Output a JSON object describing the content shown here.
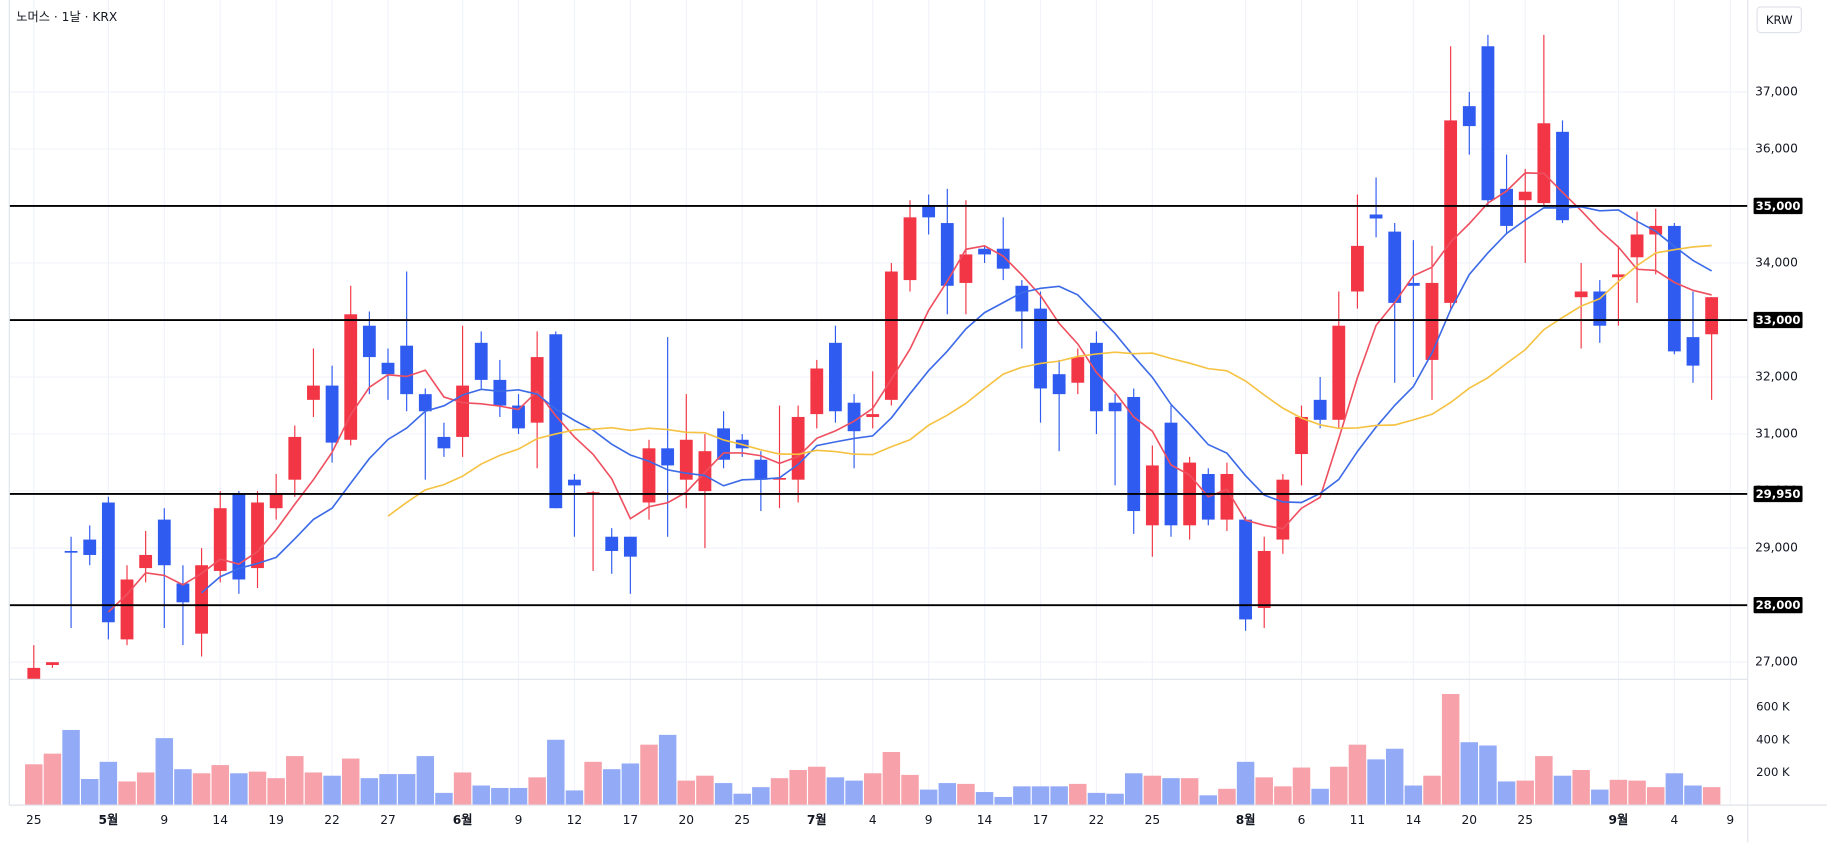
{
  "chart_data": {
    "type": "candlestick",
    "title": "노머스 · 1날 · KRX",
    "currency": "KRW",
    "categories": [
      "25",
      null,
      null,
      null,
      "5월",
      null,
      null,
      "9",
      null,
      null,
      "14",
      null,
      null,
      "19",
      null,
      null,
      "22",
      null,
      null,
      "27",
      null,
      null,
      null,
      "6월",
      null,
      null,
      "9",
      null,
      null,
      "12",
      null,
      null,
      "17",
      null,
      null,
      "20",
      null,
      null,
      "25",
      null,
      null,
      null,
      "7월",
      null,
      null,
      "4",
      null,
      null,
      "9",
      null,
      null,
      "14",
      null,
      null,
      "17",
      null,
      null,
      "22",
      null,
      null,
      "25",
      null,
      null,
      null,
      null,
      "8월",
      null,
      null,
      "6",
      null,
      null,
      "11",
      null,
      null,
      "14",
      null,
      null,
      "20",
      null,
      null,
      "25",
      null,
      null,
      null,
      null,
      "9월",
      null,
      null,
      "4",
      null,
      null,
      "9"
    ],
    "open": [
      26700,
      26950,
      28950,
      29150,
      29800,
      27400,
      28650,
      29500,
      28380,
      27500,
      28600,
      29950,
      28650,
      29700,
      30200,
      31600,
      31850,
      30900,
      32900,
      32250,
      32550,
      31700,
      30950,
      30950,
      32600,
      31950,
      31500,
      31200,
      32750,
      30200,
      29950,
      29200,
      29200,
      29800,
      30750,
      30200,
      30000,
      31100,
      30900,
      30550,
      30200,
      30200,
      31350,
      32600,
      31550,
      31300,
      31600,
      33700,
      35000,
      34700,
      33650,
      34250,
      34250,
      33600,
      33200,
      32050,
      31900,
      32600,
      31550,
      31650,
      29400,
      31200,
      29400,
      30300,
      29500,
      29500,
      27950,
      29150,
      30650,
      31600,
      31250,
      33500,
      34850,
      34550,
      33650,
      32300,
      33300,
      36750,
      37800,
      35300,
      35100,
      35050,
      36300,
      33400,
      33500,
      33750,
      34100,
      34500,
      34650,
      32700,
      32750,
      null
    ],
    "high": [
      27300,
      27000,
      29200,
      29400,
      29900,
      28700,
      29300,
      29700,
      28700,
      29000,
      30000,
      30000,
      30000,
      30300,
      31150,
      32500,
      32200,
      33600,
      33150,
      32500,
      33850,
      31800,
      31200,
      32900,
      32800,
      32300,
      31700,
      32800,
      32800,
      30300,
      30000,
      29350,
      29200,
      30900,
      32700,
      31700,
      31000,
      31400,
      31000,
      30700,
      31500,
      31500,
      32300,
      32900,
      31700,
      32100,
      34000,
      35100,
      35200,
      35300,
      35100,
      34300,
      34800,
      33700,
      33500,
      32300,
      32500,
      32800,
      31700,
      31800,
      30800,
      31500,
      30600,
      30400,
      30500,
      29550,
      29200,
      30300,
      31500,
      32000,
      33500,
      35200,
      35500,
      34700,
      34400,
      34300,
      37800,
      37000,
      38000,
      35900,
      35650,
      38000,
      36500,
      34000,
      33700,
      34300,
      34900,
      34950,
      34700,
      33500,
      33400,
      null
    ],
    "low": [
      26600,
      26900,
      27600,
      28700,
      27400,
      27300,
      28400,
      27600,
      27300,
      27100,
      28400,
      28200,
      28300,
      29500,
      29900,
      31300,
      30500,
      30800,
      31700,
      31600,
      31400,
      30200,
      30600,
      30600,
      31800,
      31300,
      31000,
      30400,
      29700,
      29200,
      28600,
      28550,
      28200,
      29500,
      29200,
      29700,
      29000,
      30400,
      30600,
      29650,
      29700,
      29800,
      31100,
      31200,
      30400,
      31100,
      31500,
      33500,
      34500,
      33100,
      33100,
      34000,
      33700,
      32500,
      31200,
      30700,
      31700,
      31000,
      30100,
      29250,
      28850,
      29200,
      29150,
      29400,
      29300,
      27550,
      27600,
      28900,
      30100,
      31100,
      31100,
      33200,
      34450,
      31900,
      32000,
      31600,
      33200,
      35900,
      35000,
      34500,
      34000,
      35000,
      34700,
      32500,
      32600,
      32900,
      33300,
      33800,
      32400,
      31900,
      31600,
      null
    ],
    "close": [
      26900,
      27000,
      28920,
      28880,
      27700,
      28450,
      28880,
      28700,
      28050,
      28700,
      29700,
      28450,
      29800,
      29950,
      30950,
      31850,
      30850,
      33100,
      32350,
      32050,
      31700,
      31400,
      30750,
      31850,
      31950,
      31500,
      31100,
      32350,
      29700,
      30100,
      29980,
      28950,
      28850,
      30750,
      30450,
      30900,
      30700,
      30550,
      30750,
      30200,
      30230,
      31300,
      32150,
      31400,
      31050,
      31350,
      33850,
      34800,
      34800,
      33600,
      34150,
      34150,
      33900,
      33150,
      31800,
      31700,
      32350,
      31400,
      31400,
      29650,
      30450,
      29400,
      30500,
      29500,
      30300,
      27750,
      28950,
      30200,
      31300,
      31250,
      32900,
      34300,
      34780,
      33300,
      33600,
      33650,
      36500,
      36400,
      35100,
      34650,
      35250,
      36450,
      34750,
      33500,
      32900,
      33800,
      34500,
      34650,
      32450,
      32200,
      33400,
      null
    ],
    "volume": [
      250000,
      315000,
      460000,
      160000,
      265000,
      145000,
      200000,
      410000,
      220000,
      195000,
      245000,
      195000,
      205000,
      165000,
      300000,
      200000,
      180000,
      285000,
      165000,
      190000,
      190000,
      300000,
      75000,
      200000,
      120000,
      105000,
      105000,
      170000,
      400000,
      90000,
      265000,
      220000,
      255000,
      370000,
      430000,
      150000,
      180000,
      135000,
      70000,
      110000,
      165000,
      215000,
      235000,
      170000,
      150000,
      195000,
      325000,
      185000,
      95000,
      135000,
      130000,
      80000,
      50000,
      115000,
      115000,
      115000,
      130000,
      75000,
      70000,
      195000,
      180000,
      165000,
      165000,
      60000,
      100000,
      265000,
      170000,
      115000,
      230000,
      100000,
      235000,
      370000,
      280000,
      345000,
      120000,
      180000,
      680000,
      385000,
      365000,
      145000,
      150000,
      300000,
      180000,
      215000,
      95000,
      155000,
      150000,
      110000,
      195000,
      120000,
      110000,
      null
    ],
    "up_color": "#f23645",
    "down_color": "#2f5bf0",
    "volume_up_color": "#f7a1aa",
    "volume_down_color": "#93aaf7",
    "moving_averages": [
      {
        "period": 5,
        "color": "#ef5060"
      },
      {
        "period": 10,
        "color": "#3d6be8"
      },
      {
        "period": 20,
        "color": "#f5c242"
      }
    ],
    "ylim": [
      26700,
      38550
    ],
    "yticks": [
      {
        "value": 27000,
        "label": "27,000"
      },
      {
        "value": 28000,
        "label": "28,000"
      },
      {
        "value": 29000,
        "label": "29,000"
      },
      {
        "value": 30000,
        "label": "30,000"
      },
      {
        "value": 31000,
        "label": "31,000"
      },
      {
        "value": 32000,
        "label": "32,000"
      },
      {
        "value": 33000,
        "label": "33,000"
      },
      {
        "value": 34000,
        "label": "34,000"
      },
      {
        "value": 35000,
        "label": "35,000"
      },
      {
        "value": 36000,
        "label": "36,000"
      },
      {
        "value": 37000,
        "label": "37,000"
      }
    ],
    "y2lim": [
      0,
      770000
    ],
    "y2ticks": [
      {
        "value": 200000,
        "label": "200 K"
      },
      {
        "value": 400000,
        "label": "400 K"
      },
      {
        "value": 600000,
        "label": "600 K"
      }
    ],
    "levels": [
      {
        "value": 35000,
        "label": "35,000"
      },
      {
        "value": 33000,
        "label": "33,000"
      },
      {
        "value": 29950,
        "label": "29,950"
      },
      {
        "value": 28000,
        "label": "28,000"
      }
    ],
    "level_color": "#000000",
    "grid": true
  }
}
